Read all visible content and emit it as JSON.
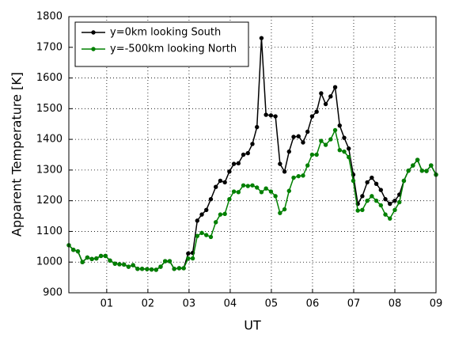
{
  "chart_data": {
    "type": "line",
    "x_label": "UT",
    "y_label": "Apparent Temperature [K]",
    "x": [
      0.08,
      0.19,
      0.3,
      0.41,
      0.53,
      0.64,
      0.75,
      0.86,
      0.97,
      1.08,
      1.2,
      1.31,
      1.42,
      1.53,
      1.64,
      1.75,
      1.86,
      1.98,
      2.09,
      2.2,
      2.31,
      2.42,
      2.53,
      2.64,
      2.76,
      2.87,
      2.98,
      3.09,
      3.2,
      3.31,
      3.42,
      3.53,
      3.65,
      3.76,
      3.87,
      3.98,
      4.09,
      4.2,
      4.32,
      4.43,
      4.54,
      4.65,
      4.76,
      4.87,
      4.99,
      5.1,
      5.21,
      5.32,
      5.43,
      5.54,
      5.66,
      5.77,
      5.88,
      5.99,
      6.1,
      6.21,
      6.32,
      6.44,
      6.55,
      6.66,
      6.77,
      6.88,
      6.99,
      7.1,
      7.21,
      7.33,
      7.44,
      7.55,
      7.66,
      7.77,
      7.88,
      8.0,
      8.11,
      8.22,
      8.33,
      8.44,
      8.55,
      8.66,
      8.77,
      8.88,
      9.0
    ],
    "series": [
      {
        "name": "y=0km looking South",
        "color": "#000000",
        "values": [
          1055,
          1040,
          1035,
          1000,
          1015,
          1010,
          1012,
          1020,
          1020,
          1005,
          995,
          993,
          992,
          985,
          990,
          978,
          978,
          977,
          976,
          975,
          985,
          1003,
          1003,
          978,
          980,
          980,
          1028,
          1030,
          1135,
          1155,
          1170,
          1205,
          1245,
          1265,
          1260,
          1295,
          1320,
          1322,
          1350,
          1355,
          1385,
          1440,
          1730,
          1480,
          1478,
          1475,
          1320,
          1295,
          1360,
          1408,
          1410,
          1390,
          1425,
          1475,
          1490,
          1550,
          1515,
          1540,
          1570,
          1445,
          1405,
          1370,
          1285,
          1190,
          1215,
          1260,
          1275,
          1255,
          1235,
          1205,
          1190,
          1200,
          1220,
          1265,
          1298,
          1315,
          1333,
          1298,
          1297,
          1315,
          1285
        ]
      },
      {
        "name": "y=-500km looking North",
        "color": "#008000",
        "values": [
          1055,
          1040,
          1035,
          1000,
          1015,
          1010,
          1012,
          1020,
          1020,
          1005,
          995,
          993,
          992,
          985,
          990,
          978,
          978,
          977,
          976,
          975,
          985,
          1003,
          1003,
          978,
          980,
          980,
          1012,
          1012,
          1085,
          1095,
          1088,
          1082,
          1130,
          1155,
          1157,
          1205,
          1230,
          1228,
          1250,
          1248,
          1250,
          1243,
          1228,
          1240,
          1230,
          1215,
          1160,
          1172,
          1232,
          1275,
          1280,
          1282,
          1315,
          1350,
          1350,
          1395,
          1382,
          1400,
          1430,
          1365,
          1360,
          1342,
          1265,
          1168,
          1170,
          1200,
          1215,
          1200,
          1185,
          1155,
          1142,
          1170,
          1195,
          1265,
          1298,
          1315,
          1333,
          1298,
          1297,
          1315,
          1285
        ]
      }
    ],
    "xlim": [
      0.08,
      9
    ],
    "xticks": [
      {
        "value": 1,
        "label": "01"
      },
      {
        "value": 2,
        "label": "02"
      },
      {
        "value": 3,
        "label": "03"
      },
      {
        "value": 4,
        "label": "04"
      },
      {
        "value": 5,
        "label": "05"
      },
      {
        "value": 6,
        "label": "06"
      },
      {
        "value": 7,
        "label": "07"
      },
      {
        "value": 8,
        "label": "08"
      },
      {
        "value": 9,
        "label": "09"
      }
    ],
    "ylim": [
      900,
      1800
    ],
    "yticks": [
      900,
      1000,
      1100,
      1200,
      1300,
      1400,
      1500,
      1600,
      1700,
      1800
    ],
    "grid": true,
    "legend": "upper left"
  }
}
